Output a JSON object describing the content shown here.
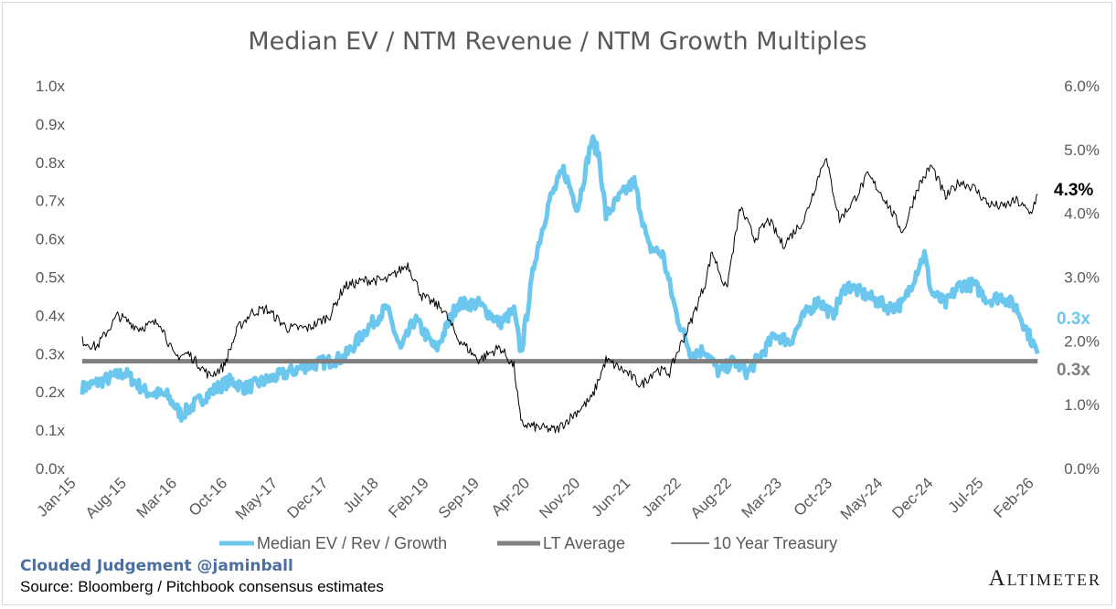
{
  "chart_data": {
    "type": "line",
    "title": "Median EV / NTM Revenue / NTM Growth Multiples",
    "x_tick_labels": [
      "Jan-15",
      "Aug-15",
      "Mar-16",
      "Oct-16",
      "May-17",
      "Dec-17",
      "Jul-18",
      "Feb-19",
      "Sep-19",
      "Apr-20",
      "Nov-20",
      "Jun-21",
      "Jan-22",
      "Aug-22",
      "Mar-23",
      "Oct-23",
      "May-24",
      "Dec-24",
      "Jul-25",
      "Feb-26"
    ],
    "x_range": [
      "2015-01",
      "2026-05"
    ],
    "y_left": {
      "min": 0.0,
      "max": 1.0,
      "step": 0.1,
      "tick_labels": [
        "0.0x",
        "0.1x",
        "0.2x",
        "0.3x",
        "0.4x",
        "0.5x",
        "0.6x",
        "0.7x",
        "0.8x",
        "0.9x",
        "1.0x"
      ]
    },
    "y_right": {
      "min": 0.0,
      "max": 6.0,
      "step": 1.0,
      "tick_labels": [
        "0.0%",
        "1.0%",
        "2.0%",
        "3.0%",
        "4.0%",
        "5.0%",
        "6.0%"
      ]
    },
    "grid": false,
    "legend_position": "bottom",
    "series": [
      {
        "name": "Median EV / Rev / Growth",
        "axis": "left",
        "color": "#6cc7ee",
        "x": [
          "2015-01",
          "2015-04",
          "2015-07",
          "2015-10",
          "2016-01",
          "2016-03",
          "2016-05",
          "2016-08",
          "2016-10",
          "2016-12",
          "2017-03",
          "2017-06",
          "2017-09",
          "2017-12",
          "2018-02",
          "2018-05",
          "2018-08",
          "2018-10",
          "2018-12",
          "2019-03",
          "2019-06",
          "2019-09",
          "2019-12",
          "2020-02",
          "2020-03",
          "2020-05",
          "2020-07",
          "2020-09",
          "2020-11",
          "2021-01",
          "2021-02",
          "2021-03",
          "2021-05",
          "2021-07",
          "2021-09",
          "2021-11",
          "2022-01",
          "2022-03",
          "2022-05",
          "2022-07",
          "2022-09",
          "2022-11",
          "2023-01",
          "2023-03",
          "2023-05",
          "2023-07",
          "2023-09",
          "2023-11",
          "2024-01",
          "2024-03",
          "2024-05",
          "2024-07",
          "2024-09",
          "2024-11",
          "2024-12",
          "2025-01",
          "2025-03",
          "2025-05",
          "2025-07",
          "2025-09",
          "2025-11",
          "2026-01",
          "2026-03",
          "2026-04"
        ],
        "values": [
          0.21,
          0.23,
          0.25,
          0.2,
          0.19,
          0.14,
          0.17,
          0.21,
          0.23,
          0.21,
          0.23,
          0.25,
          0.27,
          0.28,
          0.29,
          0.36,
          0.42,
          0.31,
          0.39,
          0.31,
          0.43,
          0.43,
          0.38,
          0.41,
          0.3,
          0.55,
          0.7,
          0.78,
          0.68,
          0.86,
          0.82,
          0.66,
          0.71,
          0.75,
          0.58,
          0.56,
          0.4,
          0.3,
          0.31,
          0.25,
          0.28,
          0.25,
          0.3,
          0.35,
          0.33,
          0.4,
          0.44,
          0.4,
          0.48,
          0.46,
          0.44,
          0.42,
          0.43,
          0.52,
          0.56,
          0.46,
          0.43,
          0.48,
          0.48,
          0.44,
          0.45,
          0.42,
          0.34,
          0.3
        ]
      },
      {
        "name": "LT Average",
        "axis": "left",
        "color": "#7f7f7f",
        "x": [
          "2015-01",
          "2026-04"
        ],
        "values": [
          0.28,
          0.28
        ]
      },
      {
        "name": "10 Year Treasury",
        "axis": "right",
        "color": "#000000",
        "x": [
          "2015-01",
          "2015-03",
          "2015-06",
          "2015-09",
          "2015-12",
          "2016-02",
          "2016-04",
          "2016-07",
          "2016-09",
          "2016-11",
          "2017-01",
          "2017-03",
          "2017-06",
          "2017-09",
          "2017-12",
          "2018-02",
          "2018-05",
          "2018-08",
          "2018-11",
          "2019-01",
          "2019-04",
          "2019-06",
          "2019-09",
          "2019-12",
          "2020-02",
          "2020-03",
          "2020-05",
          "2020-08",
          "2020-10",
          "2021-01",
          "2021-03",
          "2021-06",
          "2021-08",
          "2021-10",
          "2021-12",
          "2022-01",
          "2022-03",
          "2022-05",
          "2022-06",
          "2022-08",
          "2022-10",
          "2022-12",
          "2023-02",
          "2023-04",
          "2023-07",
          "2023-10",
          "2023-12",
          "2024-02",
          "2024-04",
          "2024-06",
          "2024-09",
          "2024-11",
          "2025-01",
          "2025-03",
          "2025-05",
          "2025-07",
          "2025-09",
          "2025-11",
          "2026-01",
          "2026-03",
          "2026-04"
        ],
        "values": [
          2.0,
          1.9,
          2.4,
          2.2,
          2.3,
          1.75,
          1.8,
          1.45,
          1.6,
          2.2,
          2.45,
          2.5,
          2.2,
          2.2,
          2.4,
          2.85,
          2.95,
          2.95,
          3.2,
          2.7,
          2.5,
          2.05,
          1.7,
          1.9,
          1.6,
          0.7,
          0.65,
          0.6,
          0.8,
          1.1,
          1.7,
          1.5,
          1.3,
          1.55,
          1.5,
          1.8,
          2.3,
          2.9,
          3.4,
          2.8,
          4.1,
          3.6,
          3.9,
          3.5,
          3.9,
          4.9,
          3.9,
          4.2,
          4.6,
          4.3,
          3.7,
          4.4,
          4.75,
          4.25,
          4.5,
          4.4,
          4.15,
          4.1,
          4.2,
          4.0,
          4.3
        ]
      }
    ],
    "end_labels": {
      "treasury": "4.3%",
      "multiple": "0.3x",
      "lt_average": "0.3x"
    }
  },
  "footer": {
    "brand": "Clouded Judgement @jaminball",
    "source": "Source: Bloomberg / Pitchbook consensus estimates",
    "logo": "Altimeter"
  }
}
